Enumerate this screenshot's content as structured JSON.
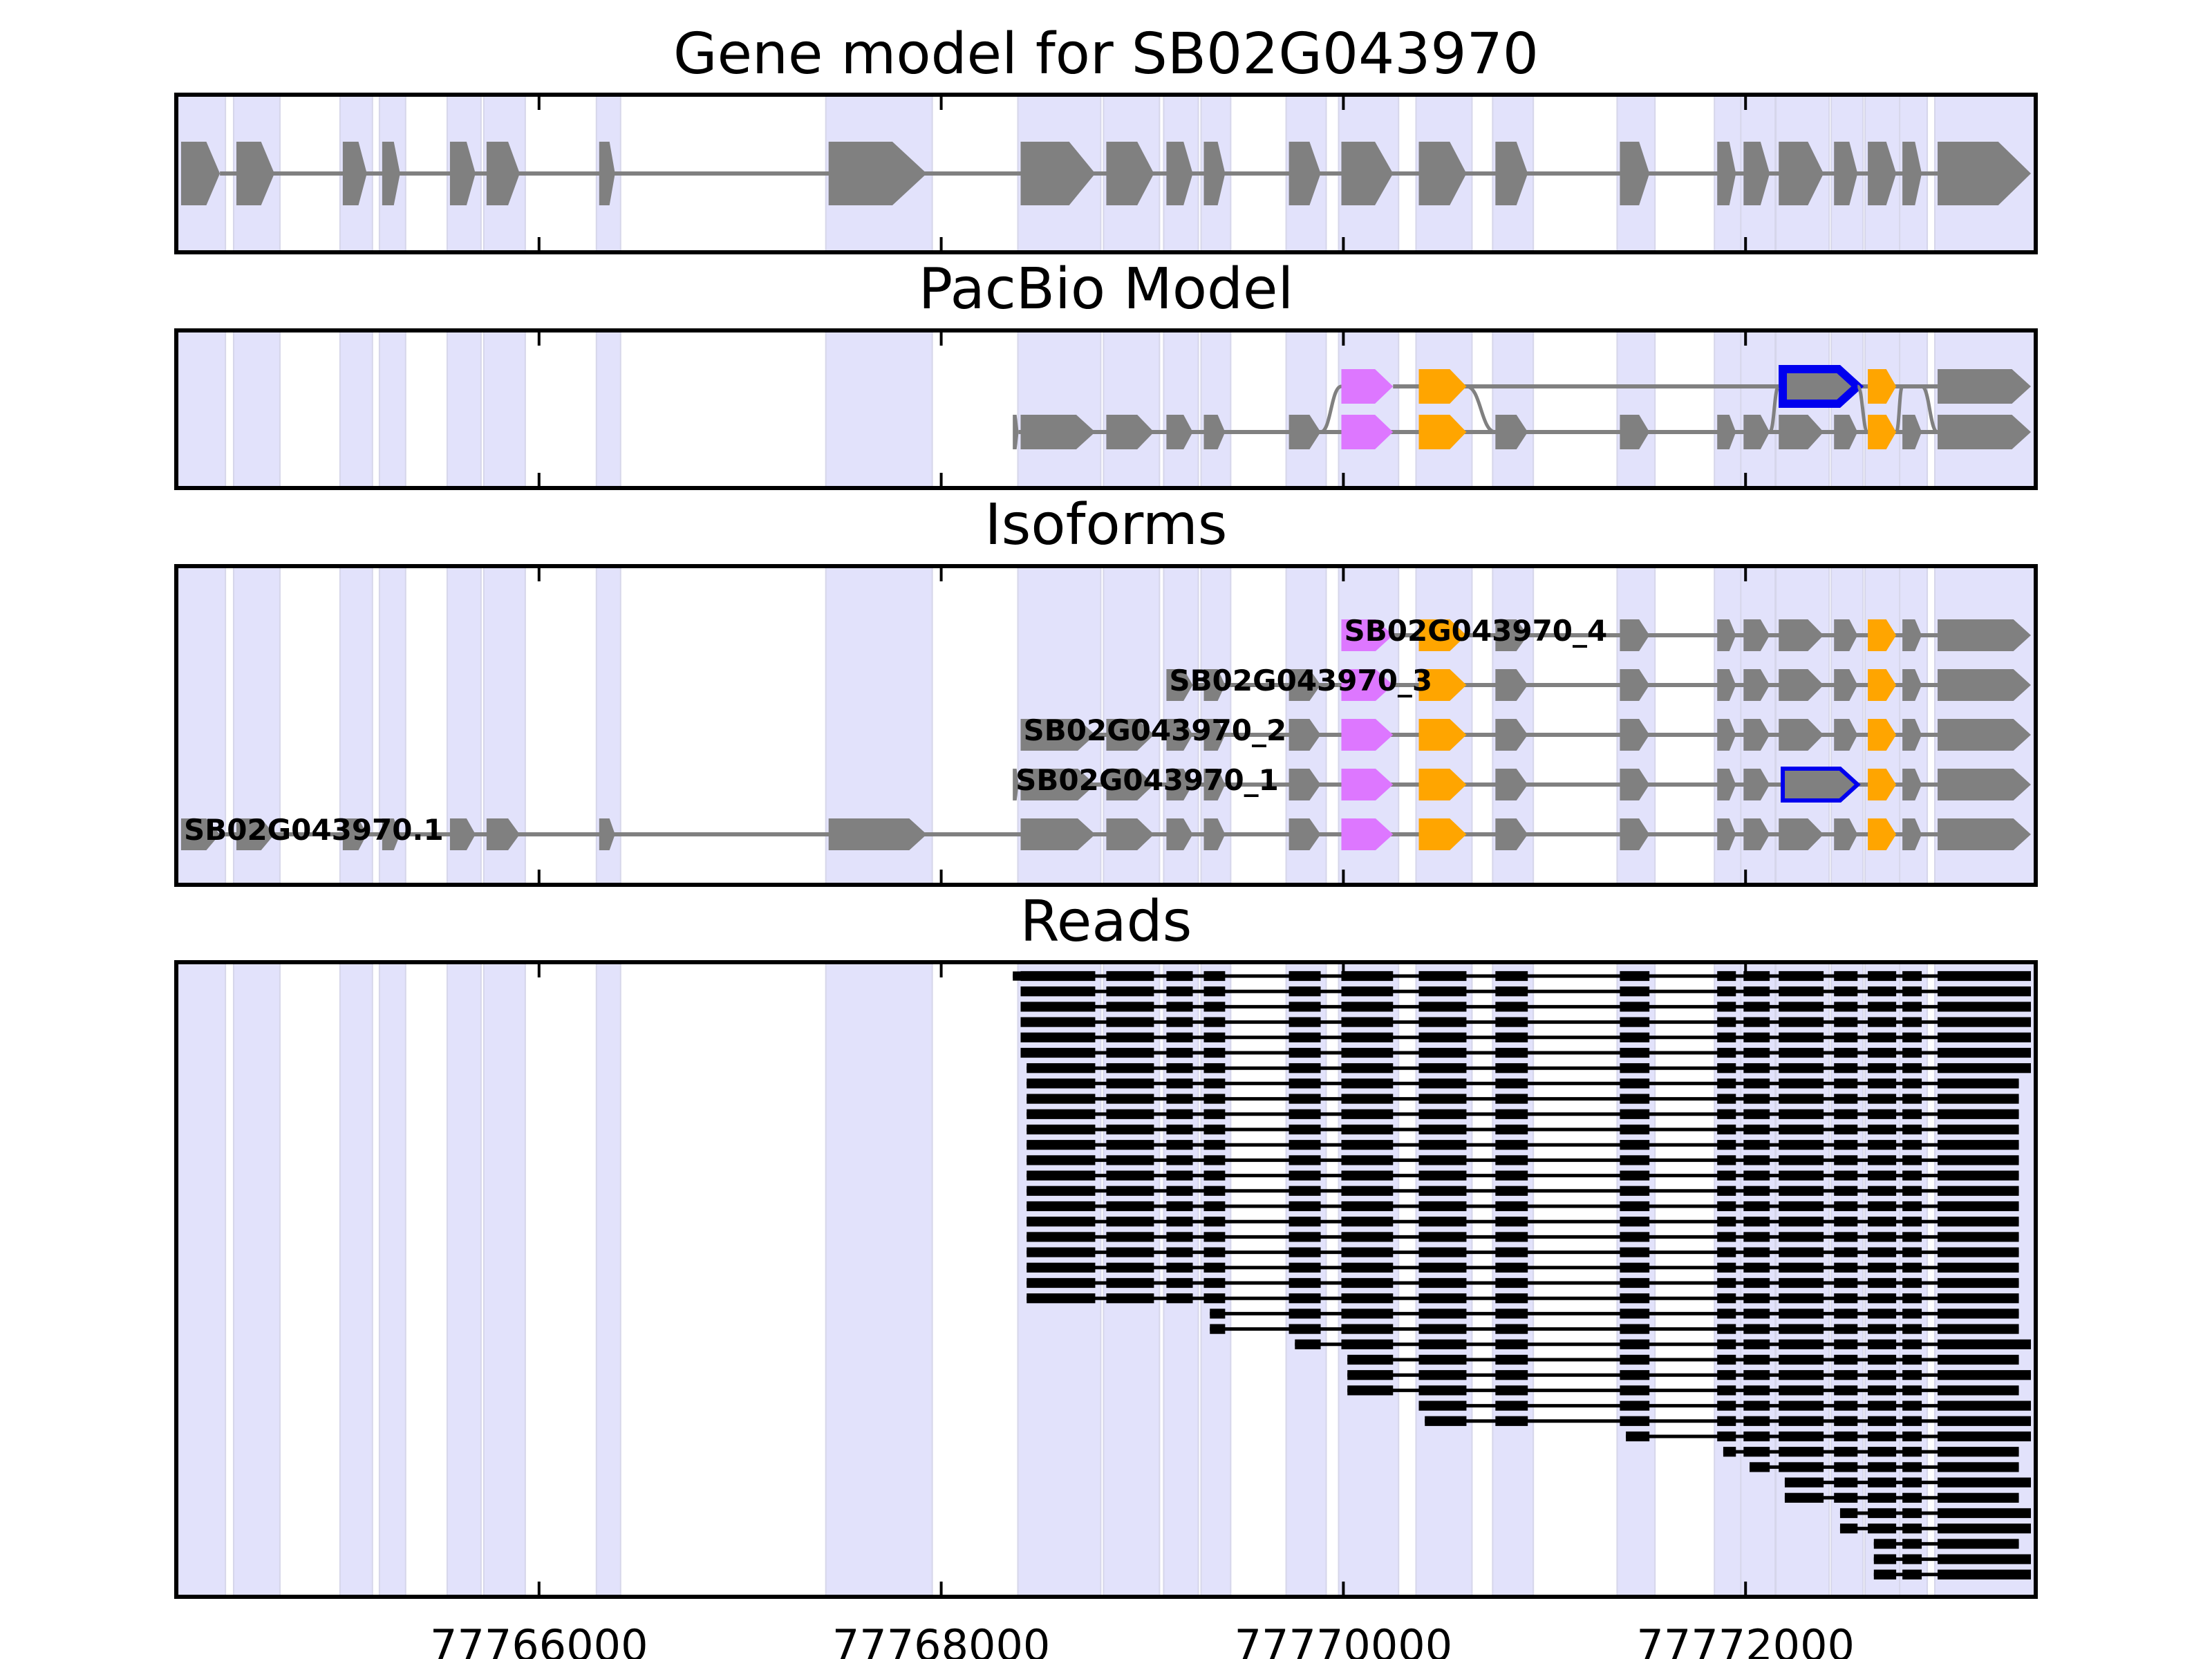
{
  "chart_data": {
    "type": "gene-track",
    "xlim": [
      77764196,
      77773443
    ],
    "xticks": [
      77766000,
      77768000,
      77770000,
      77772000
    ],
    "xtick_labels": [
      "77766000",
      "77768000",
      "77770000",
      "77772000"
    ],
    "colors": {
      "exon": "#808080",
      "intron": "#808080",
      "band": "#e2e2fb",
      "alt_exon_a": "#dd77ff",
      "alt_exon_b": "#ffa500",
      "retained_outline": "#0000ee",
      "read": "#000000",
      "axis": "#000000"
    },
    "strand": "+",
    "exons": [
      [
        77764220,
        77764413
      ],
      [
        77764495,
        77764684
      ],
      [
        77765024,
        77765144
      ],
      [
        77765220,
        77765309
      ],
      [
        77765557,
        77765684
      ],
      [
        77765739,
        77765904
      ],
      [
        77766299,
        77766378
      ],
      [
        77767440,
        77767928
      ],
      [
        77768395,
        77768766
      ],
      [
        77768821,
        77769058
      ],
      [
        77769120,
        77769251
      ],
      [
        77769306,
        77769412
      ],
      [
        77769729,
        77769887
      ],
      [
        77769990,
        77770247
      ],
      [
        77770375,
        77770612
      ],
      [
        77770756,
        77770917
      ],
      [
        77771375,
        77771522
      ],
      [
        77771859,
        77771952
      ],
      [
        77771990,
        77772120
      ],
      [
        77772165,
        77772388
      ],
      [
        77772440,
        77772557
      ],
      [
        77772608,
        77772749
      ],
      [
        77772780,
        77772876
      ],
      [
        77772955,
        77773419
      ]
    ],
    "panels": [
      {
        "title": "Gene model for SB02G043970",
        "tracks": [
          {
            "exons": [
              0,
              1,
              2,
              3,
              4,
              5,
              6,
              7,
              8,
              9,
              10,
              11,
              12,
              13,
              14,
              15,
              16,
              17,
              18,
              19,
              20,
              21,
              22,
              23
            ],
            "colors": {}
          }
        ]
      },
      {
        "title": "PacBio Model",
        "tracks": [
          {
            "exons": [
              13,
              14,
              "19r",
              21,
              23
            ],
            "colors": {
              "13": "alt_exon_a",
              "14": "alt_exon_b",
              "21": "alt_exon_b"
            },
            "join_to": 1
          },
          {
            "exons": [
              "s",
              8,
              9,
              10,
              11,
              12,
              13,
              14,
              15,
              16,
              17,
              18,
              19,
              20,
              21,
              22,
              23
            ],
            "colors": {
              "13": "alt_exon_a",
              "14": "alt_exon_b",
              "21": "alt_exon_b"
            }
          }
        ]
      },
      {
        "title": "Isoforms",
        "tracks": [
          {
            "label": "SB02G043970_4",
            "exons": [
              13,
              14,
              15,
              16,
              17,
              18,
              19,
              20,
              21,
              22,
              23
            ],
            "colors": {
              "13": "alt_exon_a",
              "14": "alt_exon_b",
              "21": "alt_exon_b"
            }
          },
          {
            "label": "SB02G043970_3",
            "exons": [
              10,
              11,
              12,
              13,
              14,
              15,
              16,
              17,
              18,
              19,
              20,
              21,
              22,
              23
            ],
            "colors": {
              "13": "alt_exon_a",
              "14": "alt_exon_b",
              "21": "alt_exon_b"
            }
          },
          {
            "label": "SB02G043970_2",
            "exons": [
              8,
              9,
              10,
              11,
              12,
              13,
              14,
              15,
              16,
              17,
              18,
              19,
              20,
              21,
              22,
              23
            ],
            "colors": {
              "13": "alt_exon_a",
              "14": "alt_exon_b",
              "21": "alt_exon_b"
            }
          },
          {
            "label": "SB02G043970_1",
            "exons": [
              "s",
              8,
              9,
              10,
              11,
              12,
              13,
              14,
              15,
              16,
              17,
              18,
              "19r",
              21,
              22,
              23
            ],
            "colors": {
              "13": "alt_exon_a",
              "14": "alt_exon_b",
              "21": "alt_exon_b"
            }
          },
          {
            "label": "SB02G043970.1",
            "exons": [
              0,
              1,
              2,
              3,
              4,
              5,
              6,
              7,
              8,
              9,
              10,
              11,
              12,
              13,
              14,
              15,
              16,
              17,
              18,
              19,
              20,
              21,
              22,
              23
            ],
            "colors": {
              "13": "alt_exon_a",
              "14": "alt_exon_b",
              "21": "alt_exon_b"
            }
          }
        ]
      },
      {
        "title": "Reads",
        "reads": [
          {
            "s": "s",
            "e": 23
          },
          {
            "s": 8,
            "e": 23
          },
          {
            "s": 8,
            "e": 23
          },
          {
            "s": 8,
            "e": 23
          },
          {
            "s": 8,
            "e": 23
          },
          {
            "s": 8,
            "e": 23
          },
          {
            "s": "8b",
            "e": 23
          },
          {
            "s": "8c",
            "e": "23s"
          },
          {
            "s": "8c",
            "e": "23s"
          },
          {
            "s": "8c",
            "e": "23s"
          },
          {
            "s": "8c",
            "e": "23s"
          },
          {
            "s": "8c",
            "e": "23s"
          },
          {
            "s": "8c",
            "e": "23s"
          },
          {
            "s": "8c",
            "e": "23s"
          },
          {
            "s": "8c",
            "e": "23s"
          },
          {
            "s": "8c",
            "e": "23s"
          },
          {
            "s": "8c",
            "e": "23s"
          },
          {
            "s": "8c",
            "e": "23s"
          },
          {
            "s": "8c",
            "e": "23s"
          },
          {
            "s": "8c",
            "e": "23s"
          },
          {
            "s": "8c",
            "e": "23s"
          },
          {
            "s": "8c",
            "e": "23s"
          },
          {
            "s": "11b",
            "e": "23s"
          },
          {
            "s": "11b",
            "e": "23s"
          },
          {
            "s": "12b",
            "e": 23
          },
          {
            "s": "13b",
            "e": "23s"
          },
          {
            "s": "13c",
            "e": 23
          },
          {
            "s": "13d",
            "e": "23s"
          },
          {
            "s": 14,
            "e": 23
          },
          {
            "s": "14b",
            "e": 23,
            "r19": true
          },
          {
            "s": "16b",
            "e": 23
          },
          {
            "s": "17b",
            "e": "23s"
          },
          {
            "s": "18b",
            "e": "23s",
            "r19": true
          },
          {
            "s": "19b",
            "e": 23
          },
          {
            "s": "19c",
            "e": "23s"
          },
          {
            "s": "20b",
            "e": 23
          },
          {
            "s": "20c",
            "e": 23
          },
          {
            "s": "21b",
            "e": "23s"
          },
          {
            "s": "21c",
            "e": 23
          },
          {
            "s": "21c",
            "e": 23
          }
        ]
      }
    ],
    "xlabel": "",
    "ylabel": ""
  }
}
